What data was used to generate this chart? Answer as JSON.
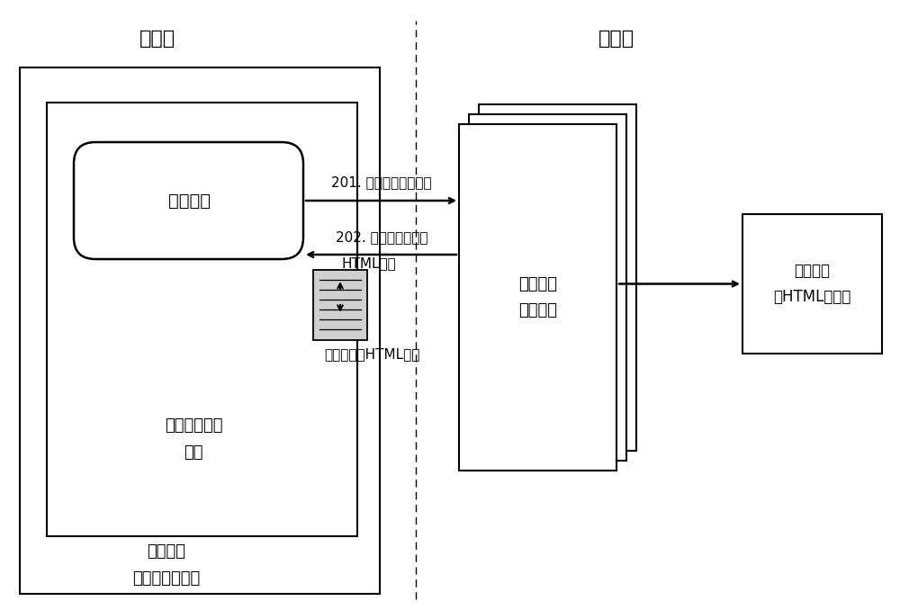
{
  "bg_color": "#ffffff",
  "title_terminal": "终端侧",
  "title_network": "网络侧",
  "label_media_info": "媒介信息",
  "label_display_device": "媒介信息展示\n装置",
  "label_display_medium": "展示媒介\n（如网络页面）",
  "label_playback_device": "媒介信息\n播放装置",
  "label_show_data": "展示数据\n（HTML页面）",
  "label_html_page": "媒介信息的HTML页面",
  "arrow1_text": "201. 请求播放媒介信息",
  "arrow2_text_line1": "202. 返回媒介信息的",
  "arrow2_text_line2": "HTML页面",
  "font_size_title": 16,
  "font_size_label": 13,
  "font_size_arrow": 11,
  "font_size_html_label": 11
}
